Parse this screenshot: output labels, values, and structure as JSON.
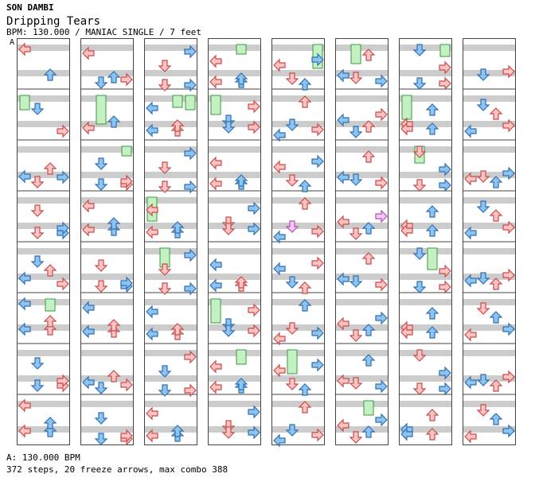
{
  "header": {
    "artist": "SON DAMBI",
    "title": "Dripping Tears",
    "subtitle": "BPM: 130.000 / MANIAC SINGLE / 7 feet"
  },
  "marker_label": "A",
  "footer": {
    "bpm_line": "A: 130.000 BPM",
    "stats_line": "372 steps, 20 freeze arrows, max combo 388"
  },
  "colors": {
    "band": "#cccccc",
    "border": "#444444",
    "red_fill": "#ffc4c4",
    "red_stroke": "#c84a4a",
    "blue_fill": "#8ec4f0",
    "blue_stroke": "#2f6fb4",
    "pink_fill": "#ffc8ff",
    "pink_stroke": "#b050b0",
    "freeze_fill": "#c4f0c4",
    "freeze_stroke": "#3a9a3a"
  },
  "chart_data": {
    "type": "step-chart",
    "columns": 8,
    "measures_per_column": 8,
    "lanes": [
      "left",
      "down",
      "up",
      "right"
    ],
    "note_colors": [
      "red",
      "blue",
      "pink",
      "green"
    ],
    "notes": [
      [
        [
          0,
          0,
          0,
          0
        ],
        [
          0,
          1,
          1,
          1
        ],
        [
          0,
          2,
          2,
          0
        ],
        [
          0,
          2,
          3,
          1
        ],
        [
          0,
          3,
          1,
          0
        ],
        [
          0,
          3,
          3,
          1
        ],
        [
          0,
          4,
          1,
          1
        ],
        [
          0,
          4,
          2,
          0
        ],
        [
          0,
          5,
          0,
          1
        ],
        [
          0,
          5,
          2,
          0
        ],
        [
          0,
          6,
          1,
          1
        ],
        [
          0,
          6,
          3,
          0
        ],
        [
          0,
          7,
          0,
          0
        ],
        [
          0,
          7,
          2,
          1
        ],
        [
          1,
          0,
          0,
          0
        ],
        [
          1,
          0,
          3,
          0
        ],
        [
          1,
          1,
          2,
          1
        ],
        [
          1,
          2,
          1,
          1
        ],
        [
          1,
          2,
          3,
          0
        ],
        [
          1,
          3,
          0,
          0
        ],
        [
          1,
          3,
          2,
          1
        ],
        [
          1,
          4,
          1,
          0
        ],
        [
          1,
          4,
          3,
          1
        ],
        [
          1,
          5,
          0,
          1
        ],
        [
          1,
          5,
          2,
          0
        ],
        [
          1,
          6,
          2,
          0
        ],
        [
          1,
          6,
          3,
          0
        ],
        [
          1,
          7,
          1,
          1
        ],
        [
          1,
          7,
          3,
          0
        ],
        [
          2,
          0,
          1,
          0
        ],
        [
          2,
          0,
          3,
          1
        ],
        [
          2,
          1,
          0,
          1
        ],
        [
          2,
          1,
          2,
          0
        ],
        [
          2,
          2,
          1,
          0
        ],
        [
          2,
          2,
          3,
          1
        ],
        [
          2,
          3,
          0,
          0
        ],
        [
          2,
          3,
          2,
          1
        ],
        [
          2,
          4,
          1,
          0
        ],
        [
          2,
          4,
          3,
          1
        ],
        [
          2,
          5,
          0,
          1
        ],
        [
          2,
          5,
          2,
          0
        ],
        [
          2,
          6,
          1,
          1
        ],
        [
          2,
          6,
          3,
          0
        ],
        [
          2,
          7,
          0,
          0
        ],
        [
          2,
          7,
          2,
          1
        ],
        [
          3,
          0,
          0,
          0
        ],
        [
          3,
          0,
          2,
          1
        ],
        [
          3,
          1,
          1,
          1
        ],
        [
          3,
          1,
          3,
          0
        ],
        [
          3,
          2,
          0,
          0
        ],
        [
          3,
          2,
          2,
          1
        ],
        [
          3,
          3,
          1,
          0
        ],
        [
          3,
          3,
          3,
          1
        ],
        [
          3,
          4,
          0,
          1
        ],
        [
          3,
          4,
          2,
          0
        ],
        [
          3,
          5,
          1,
          1
        ],
        [
          3,
          5,
          3,
          0
        ],
        [
          3,
          6,
          0,
          0
        ],
        [
          3,
          6,
          2,
          1
        ],
        [
          3,
          7,
          1,
          0
        ],
        [
          3,
          7,
          3,
          1
        ],
        [
          4,
          0,
          0,
          0
        ],
        [
          4,
          0,
          3,
          1
        ],
        [
          4,
          1,
          1,
          1
        ],
        [
          4,
          1,
          2,
          0
        ],
        [
          4,
          2,
          0,
          0
        ],
        [
          4,
          2,
          3,
          1
        ],
        [
          4,
          3,
          1,
          2
        ],
        [
          4,
          3,
          2,
          0
        ],
        [
          4,
          4,
          0,
          1
        ],
        [
          4,
          4,
          3,
          0
        ],
        [
          4,
          5,
          1,
          0
        ],
        [
          4,
          5,
          2,
          1
        ],
        [
          4,
          6,
          0,
          0
        ],
        [
          4,
          6,
          3,
          1
        ],
        [
          4,
          7,
          1,
          1
        ],
        [
          4,
          7,
          2,
          0
        ],
        [
          5,
          0,
          1,
          0
        ],
        [
          5,
          0,
          2,
          0
        ],
        [
          5,
          1,
          0,
          1
        ],
        [
          5,
          1,
          3,
          0
        ],
        [
          5,
          2,
          1,
          1
        ],
        [
          5,
          2,
          2,
          0
        ],
        [
          5,
          3,
          0,
          0
        ],
        [
          5,
          3,
          3,
          2
        ],
        [
          5,
          4,
          1,
          1
        ],
        [
          5,
          4,
          2,
          0
        ],
        [
          5,
          5,
          0,
          0
        ],
        [
          5,
          5,
          3,
          1
        ],
        [
          5,
          6,
          1,
          0
        ],
        [
          5,
          6,
          2,
          1
        ],
        [
          5,
          7,
          0,
          0
        ],
        [
          5,
          7,
          3,
          1
        ],
        [
          6,
          0,
          1,
          1
        ],
        [
          6,
          0,
          3,
          0
        ],
        [
          6,
          1,
          0,
          0
        ],
        [
          6,
          1,
          2,
          1
        ],
        [
          6,
          2,
          1,
          0
        ],
        [
          6,
          2,
          3,
          1
        ],
        [
          6,
          3,
          0,
          0
        ],
        [
          6,
          3,
          2,
          1
        ],
        [
          6,
          4,
          1,
          1
        ],
        [
          6,
          4,
          3,
          0
        ],
        [
          6,
          5,
          0,
          0
        ],
        [
          6,
          5,
          2,
          1
        ],
        [
          6,
          6,
          1,
          0
        ],
        [
          6,
          6,
          3,
          1
        ],
        [
          6,
          7,
          0,
          1
        ],
        [
          6,
          7,
          2,
          0
        ],
        [
          7,
          0,
          3,
          0
        ],
        [
          7,
          1,
          1,
          1
        ],
        [
          7,
          1,
          2,
          0
        ],
        [
          7,
          2,
          0,
          0
        ],
        [
          7,
          2,
          3,
          1
        ],
        [
          7,
          3,
          1,
          1
        ],
        [
          7,
          3,
          2,
          0
        ],
        [
          7,
          4,
          0,
          1
        ],
        [
          7,
          4,
          3,
          0
        ],
        [
          7,
          5,
          1,
          0
        ],
        [
          7,
          5,
          2,
          1
        ],
        [
          7,
          6,
          0,
          1
        ],
        [
          7,
          6,
          3,
          0
        ],
        [
          7,
          7,
          1,
          0
        ],
        [
          7,
          7,
          2,
          1
        ]
      ]
    ],
    "freezes": [
      [
        0,
        5,
        2,
        0.5,
        1
      ],
      [
        1,
        1,
        1,
        1.2,
        1
      ],
      [
        1,
        2,
        3,
        0.4,
        1
      ],
      [
        2,
        1,
        3,
        0.6,
        1
      ],
      [
        2,
        3,
        0,
        1.0,
        1
      ],
      [
        2,
        4,
        1,
        0.8,
        1
      ],
      [
        3,
        0,
        2,
        0.4,
        1
      ],
      [
        3,
        5,
        0,
        1.0,
        1
      ],
      [
        3,
        6,
        2,
        0.6,
        1
      ],
      [
        4,
        0,
        3,
        1.0,
        1
      ],
      [
        4,
        6,
        1,
        1.0,
        1
      ],
      [
        5,
        7,
        2,
        0.6,
        1
      ],
      [
        5,
        8,
        1,
        0.8,
        1
      ],
      [
        6,
        0,
        3,
        0.5,
        1
      ],
      [
        6,
        1,
        0,
        1.0,
        1
      ],
      [
        6,
        2,
        1,
        0.7,
        1
      ],
      [
        6,
        4,
        2,
        0.9,
        1
      ],
      [
        0,
        9,
        0,
        0.6,
        1
      ],
      [
        3,
        9,
        0,
        0.8,
        1
      ],
      [
        2,
        9,
        2,
        0.5,
        1
      ]
    ]
  }
}
